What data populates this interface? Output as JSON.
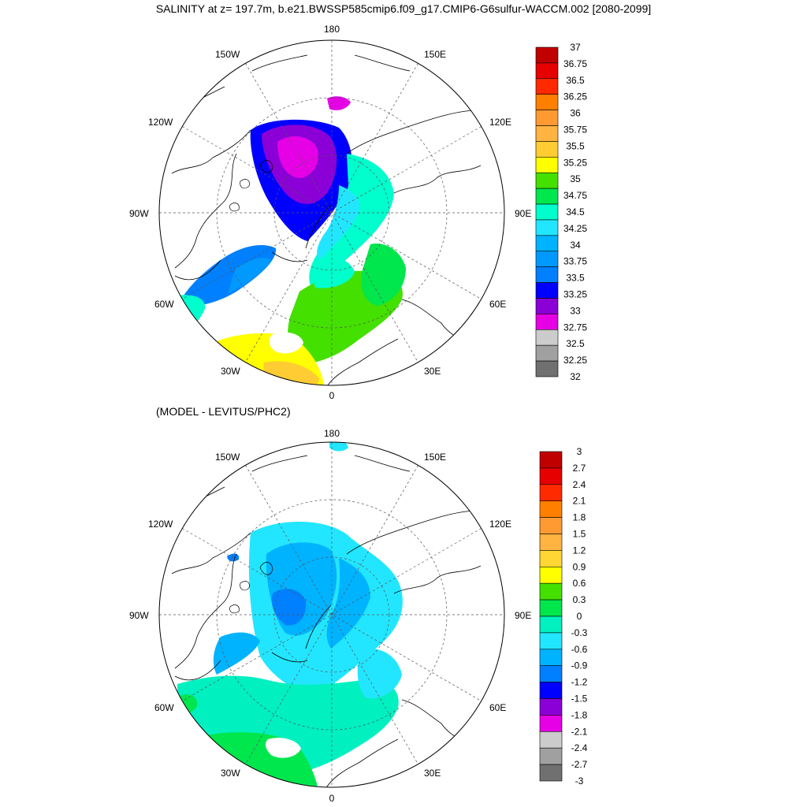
{
  "title": "SALINITY at z= 197.7m, b.e21.BWSSP585cmip6.f09_g17.CMIP6-G6sulfur-WACCM.002 [2080-2099]",
  "subtitle": "(MODEL - LEVITUS/PHC2)",
  "longitude_labels": [
    "180",
    "150E",
    "120E",
    "90E",
    "60E",
    "30E",
    "0",
    "30W",
    "60W",
    "90W",
    "120W",
    "150W"
  ],
  "colors": {
    "land": "#ffffff",
    "coast": "#000000",
    "grid": "#555555"
  },
  "top_map": {
    "colorbar_labels": [
      "37",
      "36.75",
      "36.5",
      "36.25",
      "36",
      "35.75",
      "35.5",
      "35.25",
      "35",
      "34.75",
      "34.5",
      "34.25",
      "34",
      "33.75",
      "33.5",
      "33.25",
      "33",
      "32.75",
      "32.5",
      "32.25",
      "32"
    ],
    "colorbar_colors": [
      "#c00000",
      "#e60000",
      "#ff2a00",
      "#ff8000",
      "#ff9a33",
      "#ffb340",
      "#ffcc33",
      "#ffff00",
      "#44e000",
      "#00e64d",
      "#00ffcc",
      "#22e6ff",
      "#00b3ff",
      "#0099ff",
      "#0080ff",
      "#0000ff",
      "#8a00d6",
      "#e600e6",
      "#cccccc",
      "#a0a0a0",
      "#707070"
    ]
  },
  "bottom_map": {
    "colorbar_labels": [
      "3",
      "2.7",
      "2.4",
      "2.1",
      "1.8",
      "1.5",
      "1.2",
      "0.9",
      "0.6",
      "0.3",
      "0",
      "-0.3",
      "-0.6",
      "-0.9",
      "-1.2",
      "-1.5",
      "-1.8",
      "-2.1",
      "-2.4",
      "-2.7",
      "-3"
    ],
    "colorbar_colors": [
      "#c00000",
      "#e60000",
      "#ff2a00",
      "#ff8000",
      "#ff9a33",
      "#ffb340",
      "#ffd633",
      "#ffff00",
      "#44e000",
      "#00e64d",
      "#00f0c0",
      "#22e6ff",
      "#00b3ff",
      "#0080ff",
      "#0000ff",
      "#8a00d6",
      "#e600e6",
      "#cccccc",
      "#a0a0a0",
      "#707070"
    ]
  }
}
